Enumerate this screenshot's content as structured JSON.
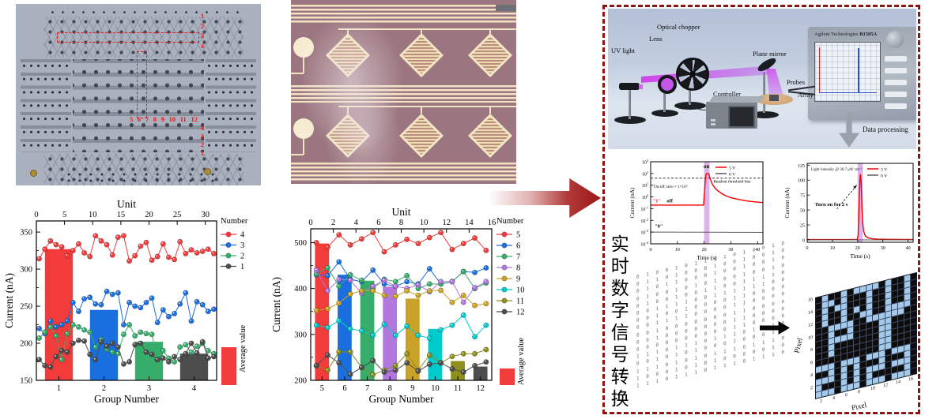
{
  "figure": {
    "photo_panel": {
      "top_row_labels": [
        "1",
        "2",
        "3",
        "4"
      ],
      "column_labels": [
        "5",
        "6",
        "7",
        "8",
        "9",
        "10",
        "11",
        "12"
      ],
      "bottom_row_labels": [
        "4",
        "3",
        "2",
        "1"
      ],
      "annotation_color": "#f31212"
    },
    "conversion_caption": "实时数字信号转换",
    "schematic": {
      "uv_light": "UV light",
      "lens": "Lens",
      "optical_chopper": "Optical chopper",
      "plane_mirror": "Plane mirror",
      "probes": "Probes",
      "array": "Array",
      "controller": "Controller",
      "instrument_brand": "Agilent Technologies",
      "instrument_model": "B1505A",
      "data_processing": "Data processing"
    },
    "pixel_map": {
      "xlabel": "Pixel",
      "ylabel": "Pixel",
      "tick_labels": [
        2,
        4,
        6,
        8,
        10,
        12,
        14,
        16
      ],
      "on_color": "#a6c9e9",
      "off_color": "#0d0d0f",
      "rows": [
        "0100101111010010",
        "0110100010010010",
        "0101100010010010",
        "0100101010010010",
        "0100100110011110",
        "0011110011111100",
        "0010010000110000",
        "0011110000110000",
        "0010000000110000",
        "0010000000110000",
        "0000000000110000",
        "1110111011101110",
        "0010101000100010",
        "1110101011101110",
        "1000101010000010",
        "1110111011101110"
      ]
    }
  },
  "chart_data": [
    {
      "id": "group-chart-1",
      "type": "bar+scatter",
      "top_axis_label": "Unit",
      "xlabel": "Group Number",
      "ylabel": "Current (nA)",
      "unit_range": [
        0,
        32
      ],
      "unit_ticks": [
        0,
        5,
        10,
        15,
        20,
        25,
        30
      ],
      "group_ticks": [
        "1",
        "2",
        "3",
        "4"
      ],
      "ylim": [
        150,
        365
      ],
      "yticks": [
        150,
        200,
        250,
        300,
        350
      ],
      "legend_title": "Number",
      "avg_label": "Average value",
      "avg_color": "#f23b3b",
      "bars": [
        {
          "group": "1",
          "value": 327,
          "color": "#f23b3b"
        },
        {
          "group": "2",
          "value": 245,
          "color": "#1a6fdf"
        },
        {
          "group": "3",
          "value": 202,
          "color": "#37ad6b"
        },
        {
          "group": "4",
          "value": 186,
          "color": "#4d4d4d"
        }
      ],
      "series": [
        {
          "name": "4",
          "color": "#f23b3b",
          "values": [
            314,
            327,
            338,
            333,
            330,
            318,
            325,
            334,
            322,
            317,
            345,
            338,
            333,
            319,
            343,
            345,
            311,
            318,
            331,
            336,
            312,
            317,
            334,
            316,
            313,
            337,
            321,
            326,
            322,
            324,
            327,
            321
          ]
        },
        {
          "name": "3",
          "color": "#1a6fdf",
          "values": [
            220,
            213,
            230,
            222,
            225,
            230,
            255,
            243,
            260,
            262,
            253,
            252,
            270,
            266,
            268,
            225,
            255,
            250,
            248,
            255,
            261,
            228,
            245,
            236,
            240,
            253,
            268,
            230,
            256,
            252,
            243,
            246
          ]
        },
        {
          "name": "2",
          "color": "#37ad6b",
          "values": [
            207,
            215,
            222,
            210,
            178,
            213,
            225,
            222,
            218,
            215,
            195,
            205,
            192,
            188,
            186,
            212,
            225,
            210,
            215,
            213,
            212,
            178,
            190,
            180,
            175,
            195,
            198,
            188,
            196,
            200,
            190,
            186
          ]
        },
        {
          "name": "1",
          "color": "#4d4d4d",
          "values": [
            178,
            170,
            168,
            182,
            190,
            188,
            200,
            204,
            203,
            185,
            178,
            202,
            196,
            200,
            195,
            172,
            175,
            198,
            200,
            188,
            185,
            178,
            180,
            175,
            182,
            178,
            186,
            200,
            187,
            202,
            180,
            182
          ]
        }
      ]
    },
    {
      "id": "group-chart-2",
      "type": "bar+scatter",
      "top_axis_label": "Unit",
      "xlabel": "Group Number",
      "ylabel": "Current (nA)",
      "unit_range": [
        0,
        16
      ],
      "unit_ticks": [
        0,
        2,
        4,
        6,
        8,
        10,
        12,
        14,
        16
      ],
      "group_ticks": [
        "5",
        "6",
        "7",
        "8",
        "9",
        "10",
        "11",
        "12"
      ],
      "ylim": [
        200,
        530
      ],
      "yticks": [
        200,
        300,
        400,
        500
      ],
      "legend_title": "Number",
      "avg_label": "Average value",
      "avg_color": "#f23b3b",
      "bars": [
        {
          "group": "5",
          "value": 498,
          "color": "#f23b3b"
        },
        {
          "group": "6",
          "value": 430,
          "color": "#1a6fdf"
        },
        {
          "group": "7",
          "value": 417,
          "color": "#37ad6b"
        },
        {
          "group": "8",
          "value": 404,
          "color": "#b177de"
        },
        {
          "group": "9",
          "value": 378,
          "color": "#c9a227"
        },
        {
          "group": "10",
          "value": 312,
          "color": "#00cbcc"
        },
        {
          "group": "11",
          "value": 242,
          "color": "#8f8f1f"
        },
        {
          "group": "12",
          "value": 230,
          "color": "#4d4d4d"
        }
      ],
      "series": [
        {
          "name": "5",
          "color": "#f23b3b",
          "values": [
            500,
            490,
            517,
            495,
            508,
            522,
            480,
            495,
            507,
            498,
            511,
            522,
            485,
            498,
            510,
            483
          ]
        },
        {
          "name": "6",
          "color": "#1a6fdf",
          "values": [
            430,
            428,
            458,
            420,
            415,
            440,
            410,
            405,
            415,
            410,
            443,
            410,
            415,
            437,
            435,
            445
          ]
        },
        {
          "name": "7",
          "color": "#37ad6b",
          "values": [
            432,
            445,
            405,
            430,
            418,
            400,
            420,
            415,
            428,
            400,
            410,
            410,
            415,
            437,
            400,
            412
          ]
        },
        {
          "name": "8",
          "color": "#b177de",
          "values": [
            440,
            395,
            420,
            418,
            390,
            405,
            418,
            405,
            400,
            408,
            393,
            415,
            415,
            370,
            402,
            415
          ]
        },
        {
          "name": "9",
          "color": "#c9a227",
          "values": [
            352,
            356,
            368,
            388,
            395,
            395,
            385,
            383,
            395,
            385,
            395,
            396,
            370,
            385,
            363,
            367
          ]
        },
        {
          "name": "10",
          "color": "#00cbcc",
          "values": [
            320,
            315,
            330,
            312,
            308,
            298,
            322,
            298,
            318,
            298,
            292,
            310,
            320,
            342,
            295,
            320
          ]
        },
        {
          "name": "11",
          "color": "#8f8f1f",
          "values": [
            232,
            222,
            262,
            262,
            228,
            212,
            222,
            232,
            258,
            222,
            255,
            238,
            252,
            258,
            258,
            267
          ]
        },
        {
          "name": "12",
          "color": "#4d4d4d",
          "values": [
            232,
            255,
            238,
            213,
            228,
            243,
            218,
            222,
            238,
            220,
            235,
            238,
            225,
            218,
            232,
            240
          ]
        }
      ]
    },
    {
      "id": "response-log",
      "type": "line",
      "xlabel": "Time (s)",
      "ylabel": "Current (nA)",
      "xlim": [
        0,
        42
      ],
      "xticks": [
        0,
        10,
        20,
        30,
        40
      ],
      "yscale": "log",
      "y_exp_range": [
        -4,
        3
      ],
      "band": {
        "x0": 20,
        "x1": 22,
        "color": "#bb65dc"
      },
      "threshold": {
        "value": 40,
        "label": "Readout threshold line"
      },
      "legend": [
        {
          "label": "3 V",
          "color": "#f40000"
        },
        {
          "label": "0 V",
          "color": "#5a5a5a"
        }
      ],
      "annotations": [
        {
          "text": "on",
          "x": 20.9,
          "v": 280,
          "size": 7,
          "weight": "bold",
          "anchor": "middle"
        },
        {
          "text": "On/off ratio ≈ 1×10⁵",
          "x": 1.2,
          "v": 6,
          "size": 5.2
        },
        {
          "text": "\"1\"",
          "x": 0.8,
          "v": 0.33,
          "size": 6.5,
          "weight": "bold",
          "color": "#e02020"
        },
        {
          "text": "off",
          "x": 6,
          "v": 0.33,
          "size": 6.5,
          "weight": "bold"
        },
        {
          "text": "\"0\"",
          "x": 1.5,
          "v": 0.0024,
          "size": 6.5,
          "weight": "bold"
        }
      ],
      "series": [
        {
          "name": "3 V",
          "color": "#f40000",
          "points": [
            [
              0,
              0.2
            ],
            [
              19.8,
              0.2
            ],
            [
              20.1,
              2
            ],
            [
              20.5,
              40
            ],
            [
              20.8,
              95
            ],
            [
              21.3,
              100
            ],
            [
              21.8,
              90
            ],
            [
              22,
              55
            ],
            [
              22.5,
              25
            ],
            [
              23,
              13
            ],
            [
              24,
              6
            ],
            [
              25,
              3.5
            ],
            [
              26.5,
              2
            ],
            [
              28,
              1.3
            ],
            [
              30,
              0.85
            ],
            [
              33,
              0.6
            ],
            [
              36,
              0.45
            ],
            [
              39,
              0.38
            ],
            [
              42,
              0.33
            ]
          ]
        },
        {
          "name": "0 V",
          "color": "#5a5a5a",
          "points": [
            [
              0,
              0.001
            ],
            [
              42,
              0.00095
            ]
          ]
        }
      ]
    },
    {
      "id": "response-linear",
      "type": "line",
      "xlabel": "Time (s)",
      "ylabel": "Current (nA)",
      "xlim": [
        0,
        42
      ],
      "xticks": [
        0,
        10,
        20,
        30,
        40
      ],
      "yscale": "linear",
      "ylim": [
        -4,
        128
      ],
      "yticks": [
        0,
        25,
        50,
        75,
        100,
        125
      ],
      "band": {
        "x0": 20,
        "x1": 22,
        "color": "#bb65dc"
      },
      "legend": [
        {
          "label": "3 V",
          "color": "#f40000"
        },
        {
          "label": "0 V",
          "color": "#5a5a5a"
        }
      ],
      "annotations": [
        {
          "text": "Light intensity @ 36.7 μW cm⁻²",
          "x": 1.5,
          "v": 116,
          "size": 5.0
        },
        {
          "text": "Turn on for 2 s",
          "x": 3,
          "v": 57,
          "size": 6.6,
          "weight": "bold",
          "arrow_to": [
            19.8,
            92
          ]
        }
      ],
      "series": [
        {
          "name": "3 V",
          "color": "#f40000",
          "points": [
            [
              0,
              0.5
            ],
            [
              19.8,
              0.5
            ],
            [
              20.2,
              8
            ],
            [
              20.6,
              60
            ],
            [
              20.9,
              100
            ],
            [
              21.1,
              110
            ],
            [
              21.4,
              96
            ],
            [
              21.7,
              55
            ],
            [
              22,
              28
            ],
            [
              22.4,
              14
            ],
            [
              23,
              7
            ],
            [
              24,
              3.5
            ],
            [
              25.5,
              2
            ],
            [
              28,
              1.2
            ],
            [
              32,
              0.8
            ],
            [
              42,
              0.6
            ]
          ]
        },
        {
          "name": "0 V",
          "color": "#5a5a5a",
          "points": [
            [
              0,
              0
            ],
            [
              42,
              0
            ]
          ]
        }
      ]
    }
  ]
}
